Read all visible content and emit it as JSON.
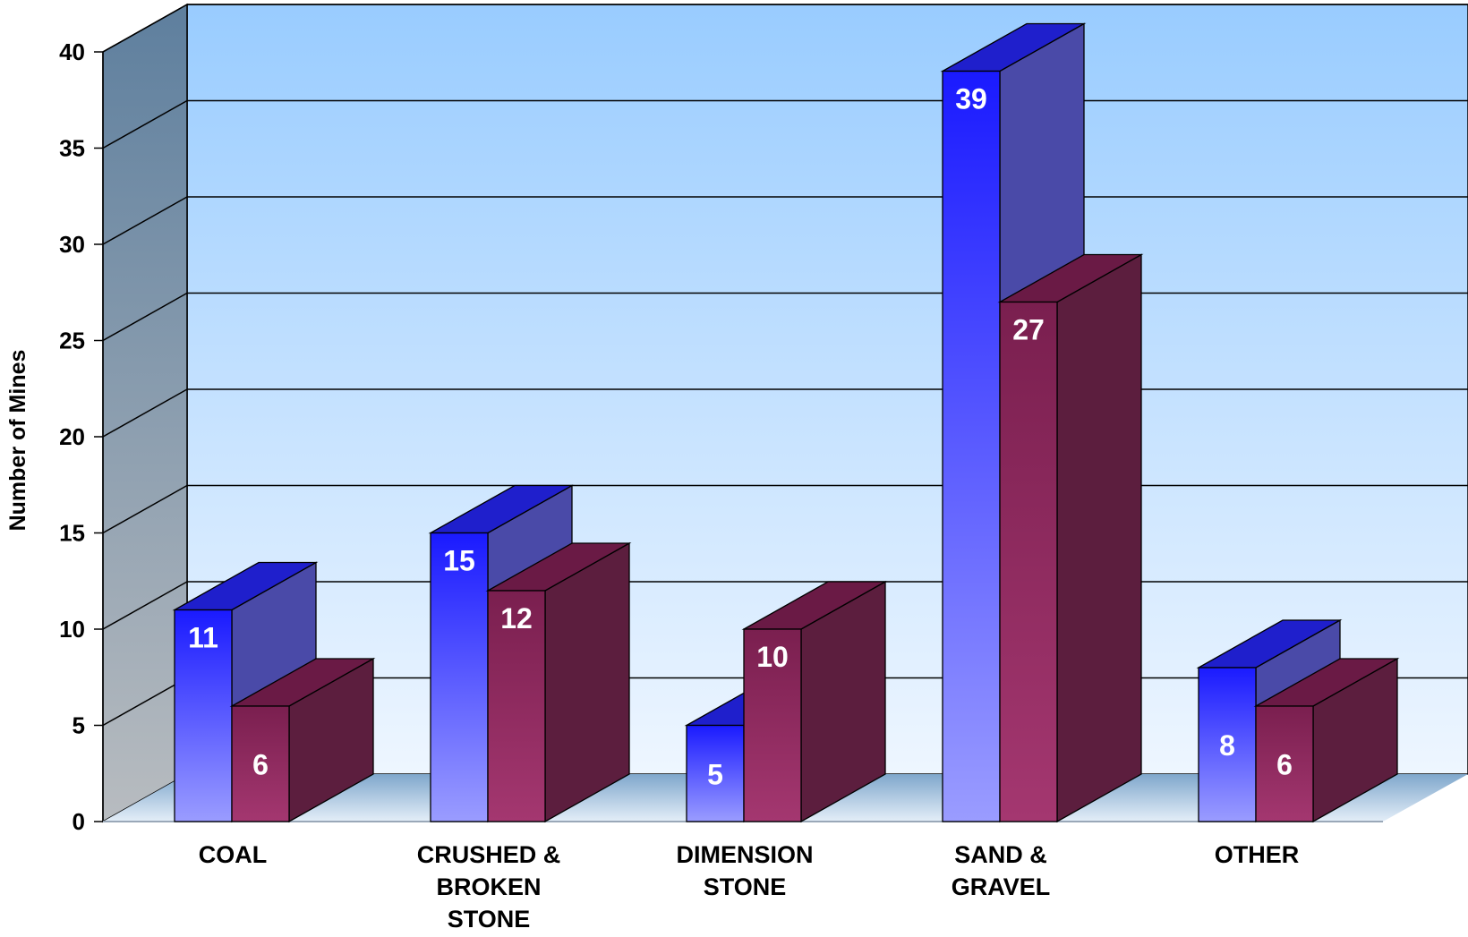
{
  "chart_data": {
    "type": "bar",
    "title": "",
    "xlabel": "",
    "ylabel": "Number of Mines",
    "ylim": [
      0,
      40
    ],
    "yticks": [
      0,
      5,
      10,
      15,
      20,
      25,
      30,
      35,
      40
    ],
    "tick_labels": [
      "0",
      "5",
      "10",
      "15",
      "20",
      "25",
      "30",
      "35",
      "40"
    ],
    "grid": true,
    "legend": "none",
    "categories": [
      [
        "COAL"
      ],
      [
        "CRUSHED &",
        "BROKEN",
        "STONE"
      ],
      [
        "DIMENSION",
        "STONE"
      ],
      [
        "SAND &",
        "GRAVEL"
      ],
      [
        "OTHER"
      ]
    ],
    "series": [
      {
        "values": [
          11,
          15,
          5,
          39,
          8
        ],
        "labels": [
          "11",
          "15",
          "5",
          "39",
          "8"
        ],
        "color": "#3b4cff"
      },
      {
        "values": [
          6,
          12,
          10,
          27,
          6
        ],
        "labels": [
          "6",
          "12",
          "10",
          "27",
          "6"
        ],
        "color": "#8a2a5a"
      }
    ]
  }
}
